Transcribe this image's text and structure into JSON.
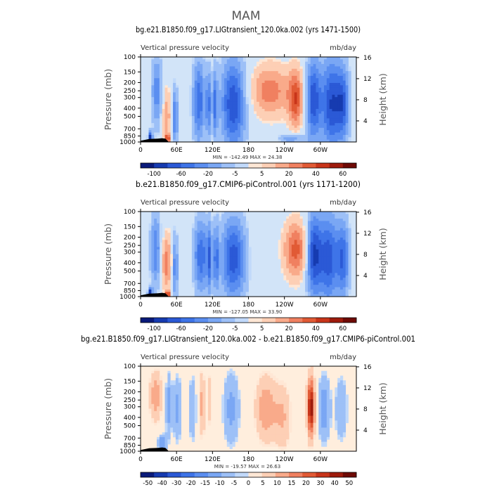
{
  "figure": {
    "title": "MAM"
  },
  "colors": {
    "bar_border": "#000000",
    "frame": "#000000"
  },
  "chart_data": [
    {
      "type": "heatmap",
      "title": "bg.e21.B1850.f09_g17.LIGtransient_120.0ka.002 (yrs 1471-1500)",
      "subtitle_left": "Vertical pressure velocity",
      "subtitle_right": "mb/day",
      "ylabel": "Pressure (mb)",
      "ylabel_right": "Height (km)",
      "x_ticks": [
        "0",
        "60E",
        "120E",
        "180",
        "120W",
        "60W"
      ],
      "y_ticks": [
        "100",
        "150",
        "200",
        "250",
        "300",
        "400",
        "500",
        "700",
        "850",
        "1000"
      ],
      "y_ticks_right": [
        "16",
        "12",
        "8",
        "4"
      ],
      "ylim": [
        1000,
        100
      ],
      "stats": "MIN = -142.49   MAX =  24.38",
      "colorbar_labels": [
        "-100",
        "-60",
        "-20",
        "-5",
        "5",
        "20",
        "40",
        "60"
      ],
      "colorbar_colors": [
        "#0a1a7a",
        "#163bb0",
        "#2b59d6",
        "#3e74e8",
        "#5b8ef0",
        "#7aa7f4",
        "#9dc0f7",
        "#c1d9fa",
        "#ffe7d5",
        "#fdcfb5",
        "#f9aa8a",
        "#f08060",
        "#e15a35",
        "#c8351a",
        "#9e1b0c",
        "#6e0a05"
      ],
      "zero_level_color": "#d2e4f8"
    },
    {
      "type": "heatmap",
      "title": "b.e21.B1850.f09_g17.CMIP6-piControl.001 (yrs 1171-1200)",
      "subtitle_left": "Vertical pressure velocity",
      "subtitle_right": "mb/day",
      "ylabel": "Pressure (mb)",
      "ylabel_right": "Height (km)",
      "x_ticks": [
        "0",
        "60E",
        "120E",
        "180",
        "120W",
        "60W"
      ],
      "y_ticks": [
        "100",
        "150",
        "200",
        "250",
        "300",
        "400",
        "500",
        "700",
        "850",
        "1000"
      ],
      "y_ticks_right": [
        "16",
        "12",
        "8",
        "4"
      ],
      "ylim": [
        1000,
        100
      ],
      "stats": "MIN = -127.05   MAX =  33.90",
      "colorbar_labels": [
        "-100",
        "-60",
        "-20",
        "-5",
        "5",
        "20",
        "40",
        "60"
      ],
      "colorbar_colors": [
        "#0a1a7a",
        "#163bb0",
        "#2b59d6",
        "#3e74e8",
        "#5b8ef0",
        "#7aa7f4",
        "#9dc0f7",
        "#c1d9fa",
        "#ffe7d5",
        "#fdcfb5",
        "#f9aa8a",
        "#f08060",
        "#e15a35",
        "#c8351a",
        "#9e1b0c",
        "#6e0a05"
      ],
      "zero_level_color": "#d2e4f8"
    },
    {
      "type": "heatmap",
      "title": "bg.e21.B1850.f09_g17.LIGtransient_120.0ka.002 - b.e21.B1850.f09_g17.CMIP6-piControl.001",
      "subtitle_left": "Vertical pressure velocity",
      "subtitle_right": "mb/day",
      "ylabel": "Pressure (mb)",
      "ylabel_right": "Height (km)",
      "x_ticks": [
        "0",
        "60E",
        "120E",
        "180",
        "120W",
        "60W"
      ],
      "y_ticks": [
        "100",
        "150",
        "200",
        "250",
        "300",
        "400",
        "500",
        "700",
        "850",
        "1000"
      ],
      "y_ticks_right": [
        "16",
        "12",
        "8",
        "4"
      ],
      "ylim": [
        1000,
        100
      ],
      "stats": "MIN = -19.57   MAX =  26.63",
      "colorbar_labels": [
        "-50",
        "-40",
        "-30",
        "-20",
        "-15",
        "-10",
        "-5",
        "0",
        "5",
        "10",
        "15",
        "20",
        "30",
        "40",
        "50"
      ],
      "colorbar_colors": [
        "#0a1a7a",
        "#163bb0",
        "#2b59d6",
        "#3e74e8",
        "#5b8ef0",
        "#7aa7f4",
        "#9dc0f7",
        "#c1d9fa",
        "#ffe7d5",
        "#fdcfb5",
        "#f9aa8a",
        "#f08060",
        "#e15a35",
        "#c8351a",
        "#9e1b0c",
        "#6e0a05"
      ],
      "zero_level_color": "#ffeedd"
    }
  ]
}
